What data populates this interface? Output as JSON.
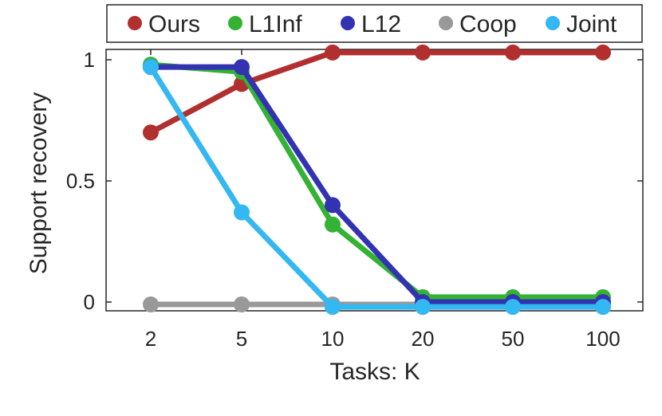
{
  "chart_data": {
    "type": "line",
    "title": "",
    "xlabel": "Tasks: K",
    "ylabel": "Support recovery",
    "categories": [
      "2",
      "5",
      "10",
      "20",
      "50",
      "100"
    ],
    "yticks": [
      "0",
      "0.5",
      "1"
    ],
    "ylim": [
      -0.04,
      1.05
    ],
    "grid": false,
    "legend_position": "top",
    "series": [
      {
        "name": "Ours",
        "color": "#b22f2f",
        "values": [
          0.7,
          0.9,
          1.03,
          1.03,
          1.03,
          1.03
        ]
      },
      {
        "name": "L1Inf",
        "color": "#33b233",
        "values": [
          0.98,
          0.95,
          0.32,
          0.02,
          0.02,
          0.02
        ]
      },
      {
        "name": "L12",
        "color": "#3333b2",
        "values": [
          0.97,
          0.97,
          0.4,
          0.0,
          0.0,
          0.0
        ]
      },
      {
        "name": "Coop",
        "color": "#999999",
        "values": [
          -0.01,
          -0.01,
          -0.01,
          -0.01,
          -0.01,
          -0.01
        ]
      },
      {
        "name": "Joint",
        "color": "#33b8f2",
        "values": [
          0.97,
          0.37,
          -0.02,
          -0.02,
          -0.02,
          -0.02
        ]
      }
    ]
  }
}
